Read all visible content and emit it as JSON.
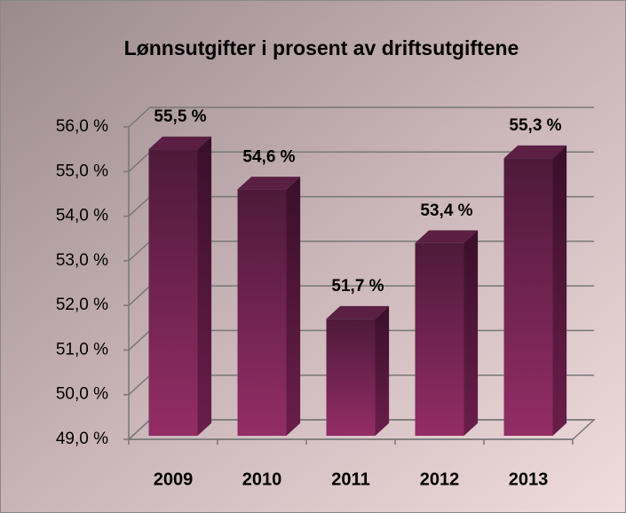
{
  "chart_data": {
    "type": "bar3d",
    "title": "Lønnsutgifter i prosent av driftsutgiftene",
    "categories": [
      "2009",
      "2010",
      "2011",
      "2012",
      "2013"
    ],
    "values": [
      55.5,
      54.6,
      51.7,
      53.4,
      55.3
    ],
    "value_labels": [
      "55,5 %",
      "54,6 %",
      "51,7 %",
      "53,4 %",
      "55,3 %"
    ],
    "color": "#7a2556",
    "ylim": [
      49,
      56
    ],
    "yticks": [
      {
        "value": 49,
        "label": "49,0 %"
      },
      {
        "value": 50,
        "label": "50,0 %"
      },
      {
        "value": 51,
        "label": "51,0 %"
      },
      {
        "value": 52,
        "label": "52,0 %"
      },
      {
        "value": 53,
        "label": "53,0 %"
      },
      {
        "value": 54,
        "label": "54,0 %"
      },
      {
        "value": 55,
        "label": "55,0 %"
      },
      {
        "value": 56,
        "label": "56,0 %"
      }
    ],
    "grid": true
  }
}
